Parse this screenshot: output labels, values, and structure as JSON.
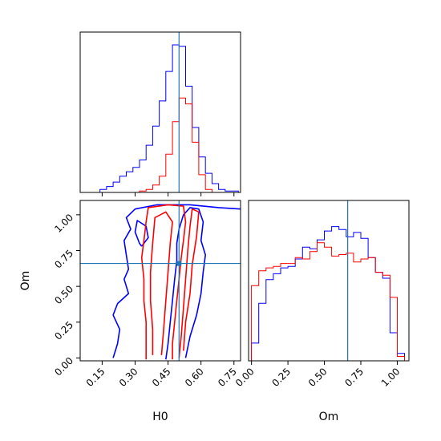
{
  "chart_data": {
    "type": "corner",
    "parameters": [
      "H0",
      "Om"
    ],
    "truths": {
      "H0": 0.5,
      "Om": 0.66
    },
    "colors": {
      "series_a": "#0000ff",
      "series_b": "#ff0000",
      "truth": "#1f77b4"
    },
    "panels": [
      {
        "id": "hist-H0",
        "type": "step-histogram",
        "xlim": [
          0.05,
          0.78
        ],
        "ylim": [
          0,
          1.0
        ],
        "ticks": [
          0.15,
          0.3,
          0.45,
          0.6,
          0.75
        ],
        "bin_edges": [
          0.14,
          0.17,
          0.2,
          0.23,
          0.26,
          0.29,
          0.32,
          0.35,
          0.38,
          0.41,
          0.44,
          0.47,
          0.5,
          0.53,
          0.56,
          0.59,
          0.62,
          0.65,
          0.68,
          0.71,
          0.74,
          0.77
        ],
        "series": [
          {
            "color_key": "series_a",
            "counts": [
              0.02,
              0.04,
              0.07,
              0.11,
              0.14,
              0.17,
              0.22,
              0.32,
              0.45,
              0.62,
              0.82,
              1.0,
              0.99,
              0.72,
              0.44,
              0.24,
              0.13,
              0.06,
              0.02,
              0.01,
              0.01
            ]
          },
          {
            "color_key": "series_b",
            "counts": [
              0.0,
              0.0,
              0.0,
              0.0,
              0.0,
              0.0,
              0.01,
              0.02,
              0.05,
              0.11,
              0.26,
              0.48,
              0.64,
              0.6,
              0.34,
              0.12,
              0.02,
              0.0,
              0.0,
              0.0,
              0.0
            ]
          }
        ]
      },
      {
        "id": "hist-Om",
        "type": "step-histogram",
        "xlim": [
          -0.02,
          1.08
        ],
        "ylim": [
          0,
          1.0
        ],
        "ticks": [
          0.0,
          0.25,
          0.5,
          0.75,
          1.0
        ],
        "tick_labels": [
          "0.00",
          "0.25",
          "0.50",
          "0.75",
          "1.00"
        ],
        "bin_edges": [
          0.0,
          0.05,
          0.1,
          0.15,
          0.2,
          0.25,
          0.3,
          0.35,
          0.4,
          0.45,
          0.5,
          0.55,
          0.6,
          0.65,
          0.7,
          0.75,
          0.8,
          0.85,
          0.9,
          0.95,
          1.0,
          1.05
        ],
        "series": [
          {
            "color_key": "series_a",
            "counts": [
              0.12,
              0.39,
              0.55,
              0.59,
              0.63,
              0.64,
              0.69,
              0.77,
              0.76,
              0.82,
              0.88,
              0.91,
              0.89,
              0.84,
              0.87,
              0.83,
              0.7,
              0.6,
              0.56,
              0.19,
              0.05
            ]
          },
          {
            "color_key": "series_b",
            "counts": [
              0.51,
              0.61,
              0.63,
              0.64,
              0.66,
              0.66,
              0.7,
              0.69,
              0.74,
              0.8,
              0.77,
              0.71,
              0.72,
              0.73,
              0.67,
              0.69,
              0.7,
              0.6,
              0.58,
              0.43,
              0.03
            ]
          }
        ]
      },
      {
        "id": "contour-H0-Om",
        "type": "contour",
        "xlim": [
          0.05,
          0.78
        ],
        "ylim": [
          -0.02,
          1.1
        ],
        "xticks": [
          0.15,
          0.3,
          0.45,
          0.6,
          0.75
        ],
        "xtick_labels": [
          "0.15",
          "0.30",
          "0.45",
          "0.60",
          "0.75"
        ],
        "yticks": [
          0.0,
          0.25,
          0.5,
          0.75,
          1.0
        ],
        "ytick_labels": [
          "0.00",
          "0.25",
          "0.50",
          "0.75",
          "1.00"
        ],
        "xlabel": "H0",
        "ylabel": "Om",
        "contours": [
          {
            "color_key": "series_a",
            "points": [
              [
                0.2,
                0.0
              ],
              [
                0.22,
                0.1
              ],
              [
                0.23,
                0.2
              ],
              [
                0.2,
                0.3
              ],
              [
                0.22,
                0.38
              ],
              [
                0.27,
                0.45
              ],
              [
                0.25,
                0.55
              ],
              [
                0.27,
                0.62
              ],
              [
                0.26,
                0.72
              ],
              [
                0.25,
                0.82
              ],
              [
                0.28,
                0.9
              ],
              [
                0.26,
                0.98
              ],
              [
                0.3,
                1.04
              ],
              [
                0.4,
                1.07
              ],
              [
                0.55,
                1.07
              ],
              [
                0.68,
                1.05
              ],
              [
                0.78,
                1.04
              ]
            ]
          },
          {
            "color_key": "series_a",
            "points": [
              [
                0.44,
                -0.01
              ],
              [
                0.45,
                0.1
              ],
              [
                0.46,
                0.25
              ],
              [
                0.47,
                0.4
              ],
              [
                0.48,
                0.55
              ],
              [
                0.49,
                0.68
              ],
              [
                0.49,
                0.8
              ],
              [
                0.5,
                0.9
              ],
              [
                0.52,
                1.0
              ],
              [
                0.55,
                1.05
              ],
              [
                0.59,
                1.04
              ],
              [
                0.61,
                0.95
              ],
              [
                0.6,
                0.82
              ],
              [
                0.62,
                0.72
              ],
              [
                0.61,
                0.6
              ],
              [
                0.6,
                0.45
              ],
              [
                0.58,
                0.3
              ],
              [
                0.55,
                0.15
              ],
              [
                0.53,
                0.0
              ]
            ]
          },
          {
            "color_key": "series_a",
            "points": [
              [
                0.33,
                0.78
              ],
              [
                0.36,
                0.84
              ],
              [
                0.35,
                0.92
              ],
              [
                0.31,
                0.96
              ],
              [
                0.3,
                0.88
              ],
              [
                0.32,
                0.8
              ],
              [
                0.33,
                0.78
              ]
            ]
          },
          {
            "color_key": "series_b",
            "points": [
              [
                0.35,
                -0.01
              ],
              [
                0.35,
                0.1
              ],
              [
                0.35,
                0.25
              ],
              [
                0.34,
                0.4
              ],
              [
                0.34,
                0.55
              ],
              [
                0.33,
                0.7
              ],
              [
                0.34,
                0.82
              ],
              [
                0.35,
                0.95
              ],
              [
                0.36,
                1.05
              ],
              [
                0.45,
                1.07
              ],
              [
                0.52,
                1.06
              ],
              [
                0.53,
                0.95
              ],
              [
                0.52,
                0.82
              ],
              [
                0.51,
                0.7
              ],
              [
                0.5,
                0.55
              ],
              [
                0.49,
                0.4
              ],
              [
                0.48,
                0.25
              ],
              [
                0.47,
                0.1
              ],
              [
                0.47,
                -0.01
              ]
            ]
          },
          {
            "color_key": "series_b",
            "points": [
              [
                0.38,
                0.02
              ],
              [
                0.38,
                0.2
              ],
              [
                0.37,
                0.4
              ],
              [
                0.37,
                0.6
              ],
              [
                0.38,
                0.8
              ],
              [
                0.39,
                0.98
              ],
              [
                0.44,
                1.02
              ],
              [
                0.47,
                0.95
              ],
              [
                0.46,
                0.8
              ],
              [
                0.45,
                0.6
              ],
              [
                0.44,
                0.4
              ],
              [
                0.43,
                0.2
              ],
              [
                0.42,
                0.02
              ]
            ]
          },
          {
            "color_key": "series_b",
            "points": [
              [
                0.5,
                0.0
              ],
              [
                0.51,
                0.15
              ],
              [
                0.52,
                0.35
              ],
              [
                0.53,
                0.55
              ],
              [
                0.54,
                0.75
              ],
              [
                0.55,
                0.92
              ],
              [
                0.56,
                1.04
              ],
              [
                0.59,
                1.02
              ],
              [
                0.58,
                0.85
              ],
              [
                0.56,
                0.65
              ],
              [
                0.55,
                0.45
              ],
              [
                0.53,
                0.25
              ],
              [
                0.52,
                0.05
              ]
            ]
          }
        ]
      }
    ]
  }
}
